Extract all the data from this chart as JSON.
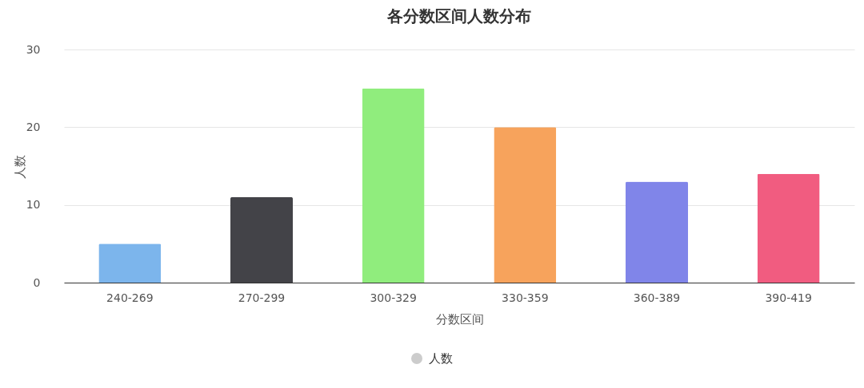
{
  "chart_data": {
    "type": "bar",
    "title": "各分数区间人数分布",
    "xlabel": "分数区间",
    "ylabel": "人数",
    "categories": [
      "240-269",
      "270-299",
      "300-329",
      "330-359",
      "360-389",
      "390-419"
    ],
    "series": [
      {
        "name": "人数",
        "colors": [
          "#7cb5ec",
          "#434348",
          "#90ed7d",
          "#f7a35c",
          "#8085e9",
          "#f15c80"
        ],
        "values": [
          5,
          11,
          25,
          20,
          13,
          14
        ]
      }
    ],
    "ylim": [
      0,
      30
    ],
    "yticks": [
      0,
      10,
      20,
      30
    ],
    "grid": "y",
    "legend": "bottom"
  }
}
